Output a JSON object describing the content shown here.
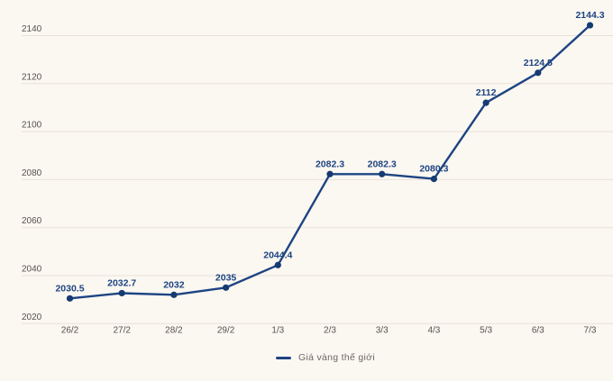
{
  "chart_data": {
    "type": "line",
    "x": [
      "26/2",
      "27/2",
      "28/2",
      "29/2",
      "1/3",
      "2/3",
      "3/3",
      "4/3",
      "5/3",
      "6/3",
      "7/3"
    ],
    "series": [
      {
        "name": "Giá vàng thế giới",
        "values": [
          2030.5,
          2032.7,
          2032,
          2035,
          2044.4,
          2082.3,
          2082.3,
          2080.3,
          2112,
          2124.5,
          2144.3
        ]
      }
    ],
    "point_labels": [
      "2030.5",
      "2032.7",
      "2032",
      "2035",
      "2044.4",
      "2082.3",
      "2082.3",
      "2080.3",
      "2112",
      "2124.5",
      "2144.3"
    ],
    "title": "",
    "xlabel": "",
    "ylabel": "",
    "ylim": [
      2020,
      2140
    ],
    "yticks": [
      2020,
      2040,
      2060,
      2080,
      2100,
      2120,
      2140
    ],
    "grid": true,
    "legend_position": "bottom-center"
  },
  "legend": {
    "label": "Giá vàng thế giới"
  },
  "colors": {
    "background": "#fbf7f1",
    "gridline": "#e9e2db",
    "line": "#1d4482",
    "marker": "#163a72",
    "point_label": "#1d4482",
    "axis_label": "#57514c",
    "legend_text": "#6d6762"
  }
}
